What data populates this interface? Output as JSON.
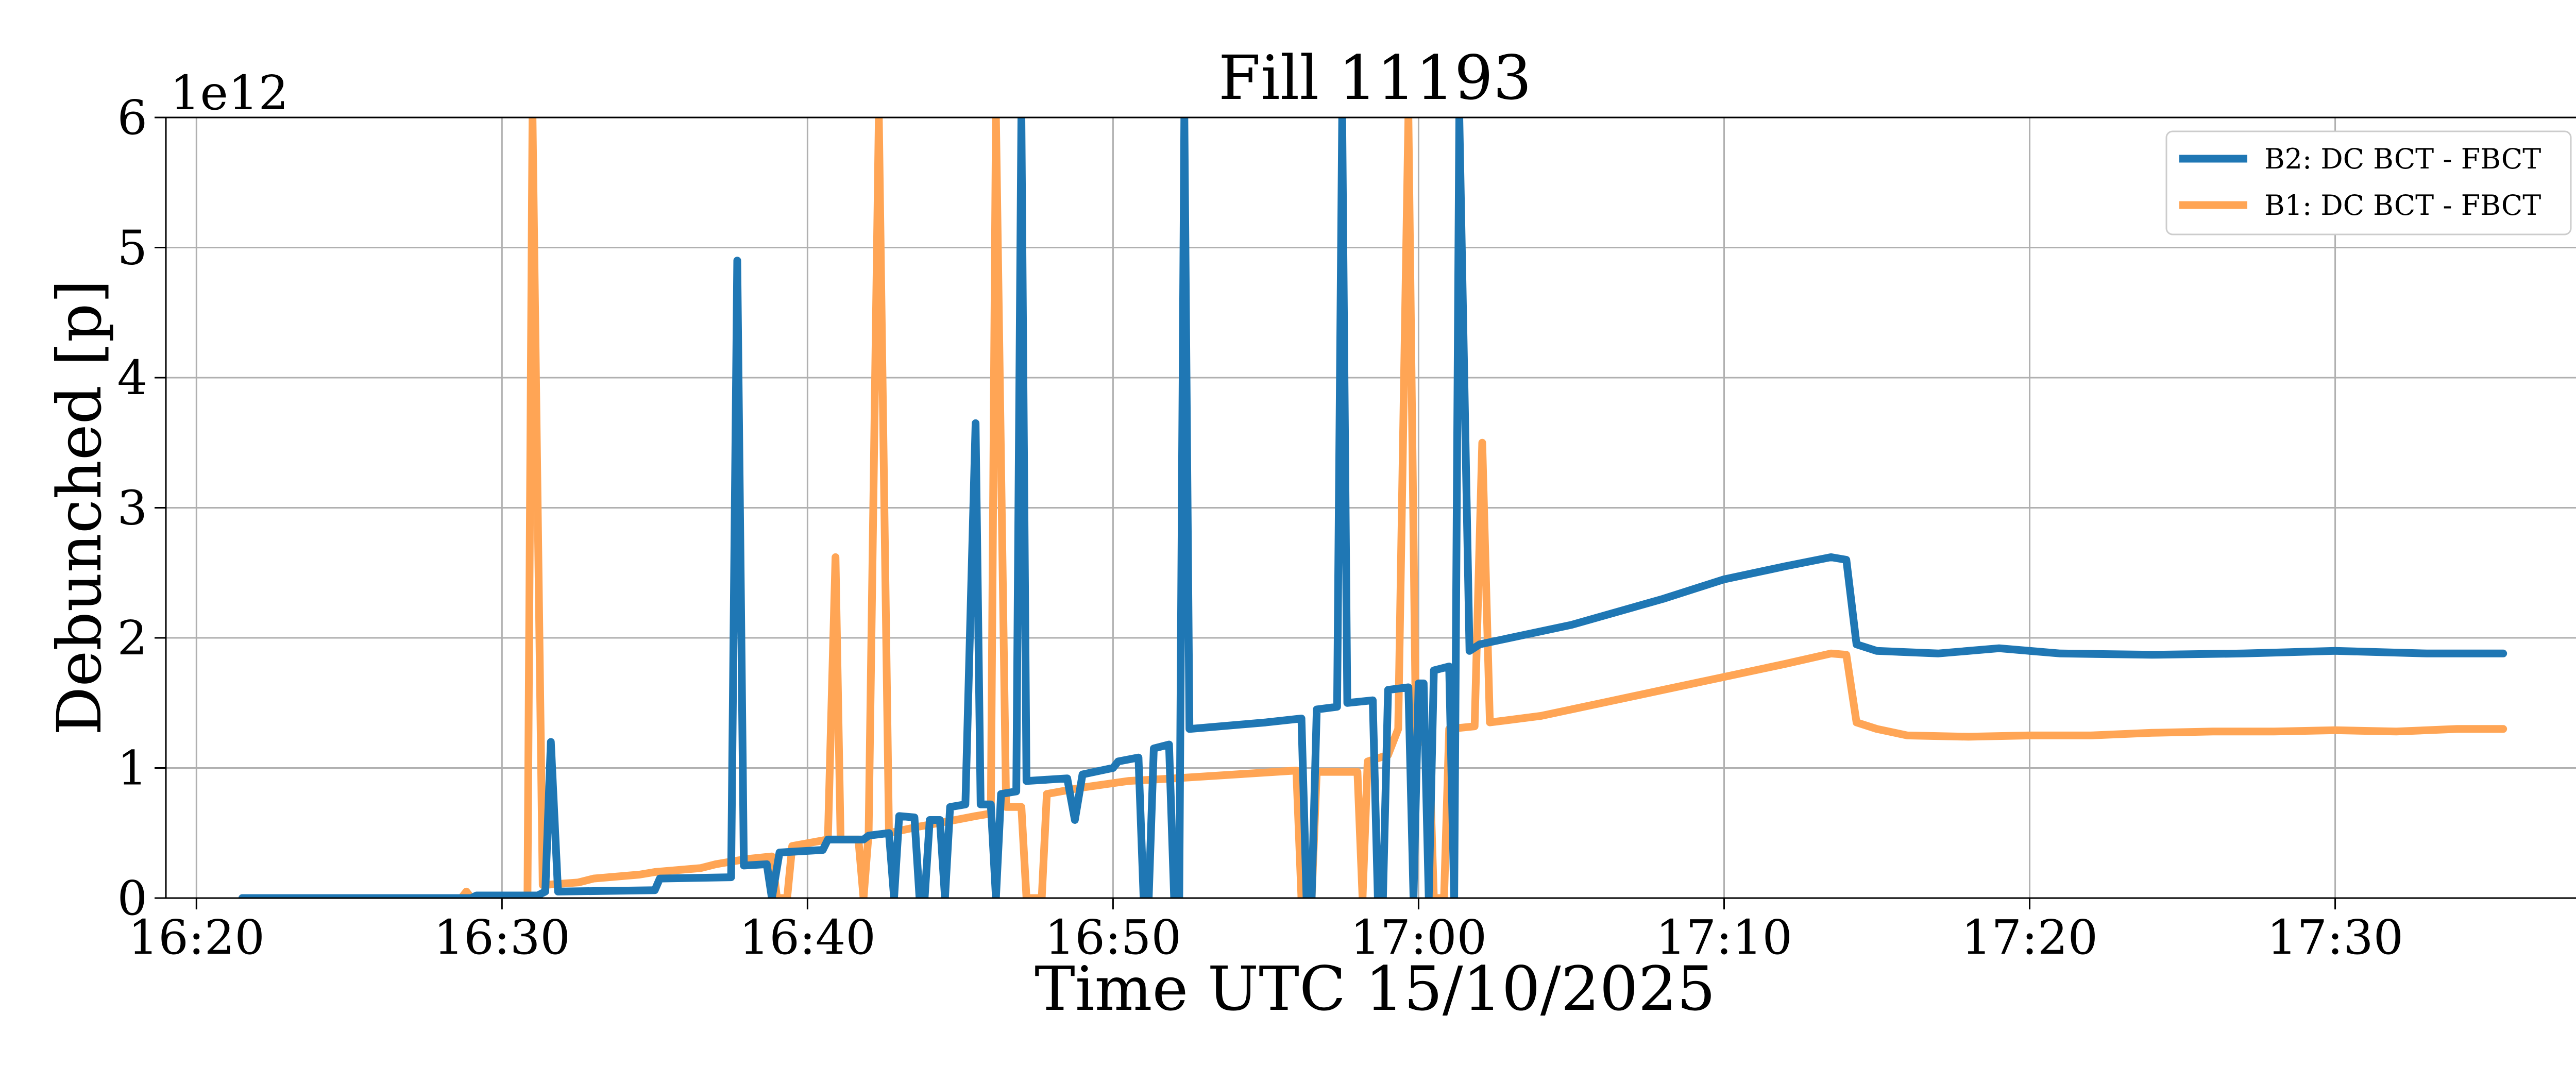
{
  "chart_data": {
    "type": "line",
    "title": "Fill 11193",
    "xlabel": "Time UTC 15/10/2025",
    "ylabel": "Debunched [p]",
    "y_offset_label": "1e12",
    "xlim": [
      "16:19:00",
      "17:38:00"
    ],
    "ylim": [
      0,
      6
    ],
    "x_ticks": [
      "16:20",
      "16:30",
      "16:40",
      "16:50",
      "17:00",
      "17:10",
      "17:20",
      "17:30"
    ],
    "y_ticks": [
      "0",
      "1",
      "2",
      "3",
      "4",
      "5",
      "6"
    ],
    "grid": true,
    "legend_position": "top-right",
    "series": [
      {
        "name": "B2: DC BCT - FBCT",
        "color": "#1f77b4",
        "points": [
          [
            "16:21:30",
            0
          ],
          [
            "16:29:00",
            0
          ],
          [
            "16:29:10",
            0.02
          ],
          [
            "16:31:10",
            0.02
          ],
          [
            "16:31:25",
            0.05
          ],
          [
            "16:31:36",
            1.2
          ],
          [
            "16:31:50",
            0.05
          ],
          [
            "16:35:00",
            0.06
          ],
          [
            "16:35:10",
            0.15
          ],
          [
            "16:37:30",
            0.16
          ],
          [
            "16:37:42",
            4.9
          ],
          [
            "16:37:55",
            0.25
          ],
          [
            "16:38:40",
            0.26
          ],
          [
            "16:38:50",
            0.0
          ],
          [
            "16:39:05",
            0.35
          ],
          [
            "16:40:30",
            0.37
          ],
          [
            "16:40:40",
            0.45
          ],
          [
            "16:41:50",
            0.45
          ],
          [
            "16:42:00",
            0.48
          ],
          [
            "16:42:40",
            0.5
          ],
          [
            "16:42:50",
            0.0
          ],
          [
            "16:43:00",
            0.63
          ],
          [
            "16:43:30",
            0.62
          ],
          [
            "16:43:40",
            0.0
          ],
          [
            "16:43:50",
            0.0
          ],
          [
            "16:44:00",
            0.6
          ],
          [
            "16:44:20",
            0.6
          ],
          [
            "16:44:30",
            0.0
          ],
          [
            "16:44:40",
            0.7
          ],
          [
            "16:45:10",
            0.72
          ],
          [
            "16:45:30",
            3.65
          ],
          [
            "16:45:40",
            0.72
          ],
          [
            "16:46:00",
            0.72
          ],
          [
            "16:46:10",
            0.0
          ],
          [
            "16:46:20",
            0.8
          ],
          [
            "16:46:50",
            0.82
          ],
          [
            "16:47:00",
            6.0
          ],
          [
            "16:47:10",
            0.9
          ],
          [
            "16:48:30",
            0.92
          ],
          [
            "16:48:45",
            0.6
          ],
          [
            "16:49:00",
            0.95
          ],
          [
            "16:50:00",
            1.0
          ],
          [
            "16:50:10",
            1.05
          ],
          [
            "16:50:50",
            1.08
          ],
          [
            "16:51:00",
            0.0
          ],
          [
            "16:51:10",
            0.0
          ],
          [
            "16:51:20",
            1.15
          ],
          [
            "16:51:50",
            1.18
          ],
          [
            "16:52:00",
            0.0
          ],
          [
            "16:52:10",
            0.0
          ],
          [
            "16:52:20",
            6.0
          ],
          [
            "16:52:30",
            1.3
          ],
          [
            "16:55:00",
            1.35
          ],
          [
            "16:56:10",
            1.38
          ],
          [
            "16:56:20",
            0.0
          ],
          [
            "16:56:30",
            0.0
          ],
          [
            "16:56:40",
            1.45
          ],
          [
            "16:57:20",
            1.47
          ],
          [
            "16:57:30",
            6.0
          ],
          [
            "16:57:40",
            1.5
          ],
          [
            "16:58:30",
            1.52
          ],
          [
            "16:58:40",
            0.0
          ],
          [
            "16:58:50",
            0.0
          ],
          [
            "16:59:00",
            1.6
          ],
          [
            "16:59:40",
            1.62
          ],
          [
            "16:59:50",
            0.0
          ],
          [
            "17:00:00",
            1.65
          ],
          [
            "17:00:10",
            1.65
          ],
          [
            "17:00:20",
            0.0
          ],
          [
            "17:00:30",
            1.75
          ],
          [
            "17:01:00",
            1.78
          ],
          [
            "17:01:10",
            0.0
          ],
          [
            "17:01:20",
            6.0
          ],
          [
            "17:01:40",
            1.9
          ],
          [
            "17:02:00",
            1.95
          ],
          [
            "17:05:00",
            2.1
          ],
          [
            "17:08:00",
            2.3
          ],
          [
            "17:10:00",
            2.45
          ],
          [
            "17:12:00",
            2.55
          ],
          [
            "17:13:30",
            2.62
          ],
          [
            "17:14:00",
            2.6
          ],
          [
            "17:14:20",
            1.95
          ],
          [
            "17:15:00",
            1.9
          ],
          [
            "17:17:00",
            1.88
          ],
          [
            "17:19:00",
            1.92
          ],
          [
            "17:21:00",
            1.88
          ],
          [
            "17:24:00",
            1.87
          ],
          [
            "17:27:00",
            1.88
          ],
          [
            "17:30:00",
            1.9
          ],
          [
            "17:33:00",
            1.88
          ],
          [
            "17:35:30",
            1.88
          ]
        ]
      },
      {
        "name": "B1: DC BCT - FBCT",
        "color": "#ffa555",
        "points": [
          [
            "16:21:30",
            0
          ],
          [
            "16:28:40",
            0
          ],
          [
            "16:28:50",
            0.05
          ],
          [
            "16:29:00",
            0
          ],
          [
            "16:30:50",
            0
          ],
          [
            "16:31:00",
            6.0
          ],
          [
            "16:31:20",
            0.1
          ],
          [
            "16:32:30",
            0.12
          ],
          [
            "16:33:00",
            0.15
          ],
          [
            "16:34:30",
            0.18
          ],
          [
            "16:35:00",
            0.2
          ],
          [
            "16:36:30",
            0.23
          ],
          [
            "16:37:00",
            0.26
          ],
          [
            "16:38:00",
            0.3
          ],
          [
            "16:38:50",
            0.32
          ],
          [
            "16:39:00",
            0.0
          ],
          [
            "16:39:20",
            0.0
          ],
          [
            "16:39:30",
            0.4
          ],
          [
            "16:40:40",
            0.45
          ],
          [
            "16:40:55",
            2.62
          ],
          [
            "16:41:05",
            0.45
          ],
          [
            "16:41:40",
            0.45
          ],
          [
            "16:41:50",
            0.0
          ],
          [
            "16:42:00",
            0.5
          ],
          [
            "16:42:20",
            6.0
          ],
          [
            "16:42:40",
            0.5
          ],
          [
            "16:43:40",
            0.55
          ],
          [
            "16:44:50",
            0.6
          ],
          [
            "16:45:30",
            0.63
          ],
          [
            "16:46:00",
            0.65
          ],
          [
            "16:46:10",
            6.0
          ],
          [
            "16:46:30",
            0.7
          ],
          [
            "16:47:00",
            0.7
          ],
          [
            "16:47:10",
            0.0
          ],
          [
            "16:47:40",
            0.0
          ],
          [
            "16:47:50",
            0.8
          ],
          [
            "16:49:00",
            0.85
          ],
          [
            "16:50:30",
            0.9
          ],
          [
            "16:52:00",
            0.92
          ],
          [
            "16:54:00",
            0.95
          ],
          [
            "16:56:00",
            0.98
          ],
          [
            "16:56:10",
            0.0
          ],
          [
            "16:56:30",
            0.0
          ],
          [
            "16:56:40",
            0.97
          ],
          [
            "16:58:00",
            0.97
          ],
          [
            "16:58:10",
            0.0
          ],
          [
            "16:58:20",
            1.05
          ],
          [
            "16:59:00",
            1.1
          ],
          [
            "16:59:20",
            1.3
          ],
          [
            "16:59:40",
            6.0
          ],
          [
            "16:59:55",
            1.2
          ],
          [
            "17:00:10",
            1.2
          ],
          [
            "17:00:20",
            1.25
          ],
          [
            "17:00:30",
            0.0
          ],
          [
            "17:00:50",
            0.0
          ],
          [
            "17:01:00",
            1.3
          ],
          [
            "17:01:50",
            1.32
          ],
          [
            "17:02:05",
            3.5
          ],
          [
            "17:02:20",
            1.35
          ],
          [
            "17:04:00",
            1.4
          ],
          [
            "17:06:00",
            1.5
          ],
          [
            "17:08:00",
            1.6
          ],
          [
            "17:10:00",
            1.7
          ],
          [
            "17:12:00",
            1.8
          ],
          [
            "17:13:30",
            1.88
          ],
          [
            "17:14:00",
            1.87
          ],
          [
            "17:14:20",
            1.35
          ],
          [
            "17:15:00",
            1.3
          ],
          [
            "17:16:00",
            1.25
          ],
          [
            "17:18:00",
            1.24
          ],
          [
            "17:20:00",
            1.25
          ],
          [
            "17:22:00",
            1.25
          ],
          [
            "17:24:00",
            1.27
          ],
          [
            "17:26:00",
            1.28
          ],
          [
            "17:28:00",
            1.28
          ],
          [
            "17:30:00",
            1.29
          ],
          [
            "17:32:00",
            1.28
          ],
          [
            "17:34:00",
            1.3
          ],
          [
            "17:35:30",
            1.3
          ]
        ]
      }
    ]
  }
}
